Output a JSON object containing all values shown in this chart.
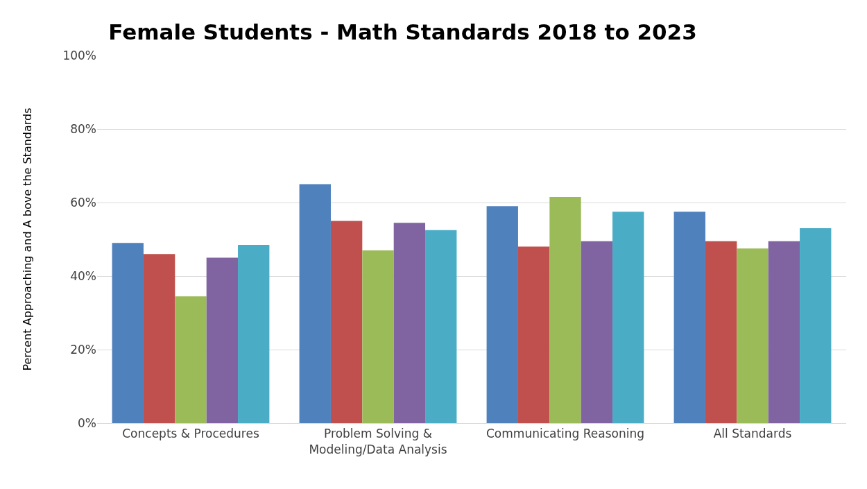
{
  "chart_data": {
    "type": "bar",
    "title": "Female Students - Math Standards 2018 to 2023",
    "ylabel": "Percent Approaching and A bove the Standards",
    "categories": [
      "Concepts & Procedures",
      "Problem Solving & Modeling/Data Analysis",
      "Communicating Reasoning",
      "All Standards"
    ],
    "series": [
      {
        "color": "#4f81bd",
        "values": [
          49,
          65,
          59,
          57.5
        ]
      },
      {
        "color": "#c0504d",
        "values": [
          46,
          55,
          48,
          49.5
        ]
      },
      {
        "color": "#9bbb59",
        "values": [
          34.5,
          47,
          61.5,
          47.5
        ]
      },
      {
        "color": "#8064a2",
        "values": [
          45,
          54.5,
          49.5,
          49.5
        ]
      },
      {
        "color": "#4bacc6",
        "values": [
          48.5,
          52.5,
          57.5,
          53
        ]
      }
    ],
    "ylim": [
      0,
      100
    ],
    "yticks": [
      {
        "value": 0,
        "label": "0%"
      },
      {
        "value": 20,
        "label": "20%"
      },
      {
        "value": 40,
        "label": "40%"
      },
      {
        "value": 60,
        "label": "60%"
      },
      {
        "value": 80,
        "label": "80%"
      },
      {
        "value": 100,
        "label": "100%"
      }
    ],
    "grid": "y"
  }
}
